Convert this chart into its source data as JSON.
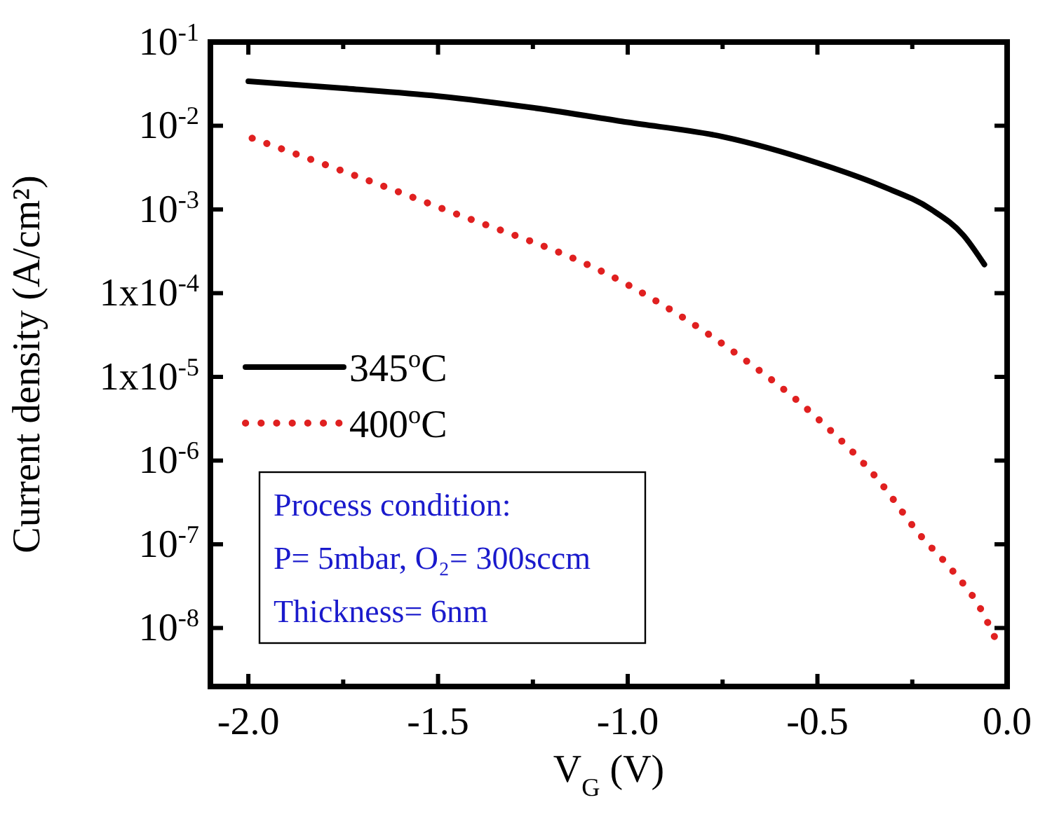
{
  "chart_data": {
    "type": "line",
    "xlabel": "V$_{G}$ (V)",
    "ylabel": "Current density (A/cm²)",
    "log": "y",
    "xlim": [
      -2.1,
      0
    ],
    "xticks": [
      {
        "value": -2,
        "label": "-2.0"
      },
      {
        "value": -1.75,
        "label": null
      },
      {
        "value": -1.5,
        "label": "-1.5"
      },
      {
        "value": -1.25,
        "label": null
      },
      {
        "value": -1,
        "label": "-1.0"
      },
      {
        "value": -0.75,
        "label": null
      },
      {
        "value": -0.5,
        "label": "-0.5"
      },
      {
        "value": -0.25,
        "label": null
      },
      {
        "value": 0,
        "label": "0.0"
      }
    ],
    "ylim": [
      2e-09,
      0.1
    ],
    "yticks": [
      {
        "value": 0.1,
        "label": "10$^{-1}$"
      },
      {
        "value": 0.01,
        "label": "10$^{-2}$"
      },
      {
        "value": 0.001,
        "label": "10$^{-3}$"
      },
      {
        "value": 0.0001,
        "label": "1x10$^{-4}$"
      },
      {
        "value": 1e-05,
        "label": "1x10$^{-5}$"
      },
      {
        "value": 1e-06,
        "label": "10$^{-6}$"
      },
      {
        "value": 1e-07,
        "label": "10$^{-7}$"
      },
      {
        "value": 1e-08,
        "label": "10$^{-8}$"
      }
    ],
    "grid": false,
    "legend": "left",
    "series": [
      {
        "name": "345$^{o}$C",
        "color": "#000000",
        "line_style": "solid",
        "x": [
          -2.0,
          -1.75,
          -1.5,
          -1.25,
          -1.0,
          -0.75,
          -0.5,
          -0.33,
          -0.2,
          -0.115,
          -0.06
        ],
        "values": [
          0.034,
          0.028,
          0.0226,
          0.0164,
          0.011,
          0.0074,
          0.0036,
          0.0019,
          0.001,
          0.00049,
          0.00022
        ]
      },
      {
        "name": "400$^{o}$C",
        "color": "#e02020",
        "line_style": "dotted",
        "x": [
          -1.99,
          -1.5,
          -1.0,
          -0.74,
          -0.5,
          -0.34,
          -0.23,
          -0.145,
          -0.07,
          -0.03
        ],
        "values": [
          0.0071,
          0.00107,
          0.000126,
          2.3e-05,
          3.2e-06,
          5.9e-07,
          1.3e-07,
          4.9e-08,
          1.7e-08,
          7.3e-09
        ]
      }
    ],
    "annotations": [
      "Process condition:",
      "P= 5mbar, O₂= 300sccm",
      "Thickness= 6nm"
    ]
  }
}
